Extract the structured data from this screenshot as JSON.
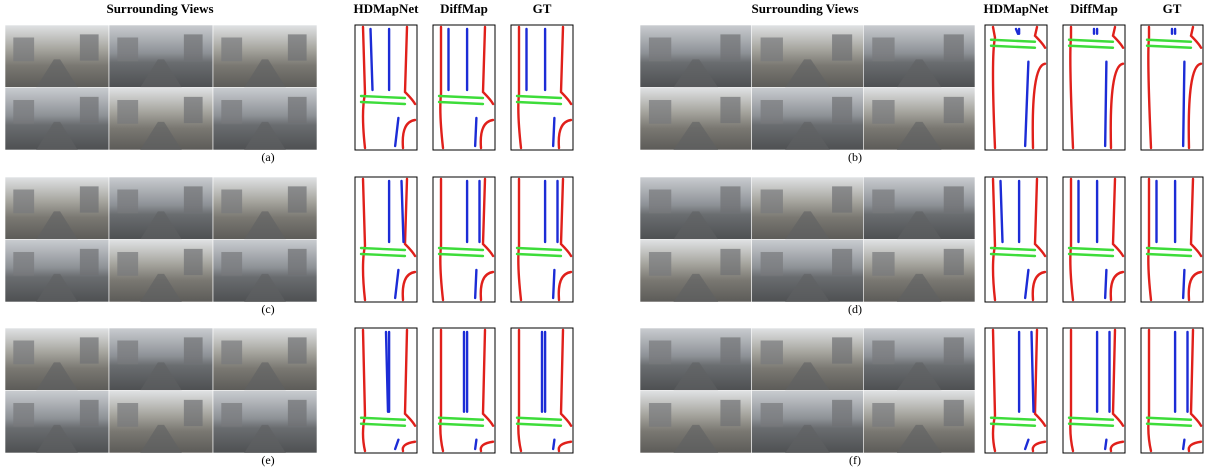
{
  "column_groups": [
    {
      "titles": [
        "Surrounding Views",
        "HDMapNet",
        "DiffMap",
        "GT"
      ]
    },
    {
      "titles": [
        "Surrounding Views",
        "HDMapNet",
        "DiffMap",
        "GT"
      ]
    }
  ],
  "panels": [
    {
      "label": "(a)"
    },
    {
      "label": "(b)"
    },
    {
      "label": "(c)"
    },
    {
      "label": "(d)"
    },
    {
      "label": "(e)"
    },
    {
      "label": "(f)"
    }
  ]
}
